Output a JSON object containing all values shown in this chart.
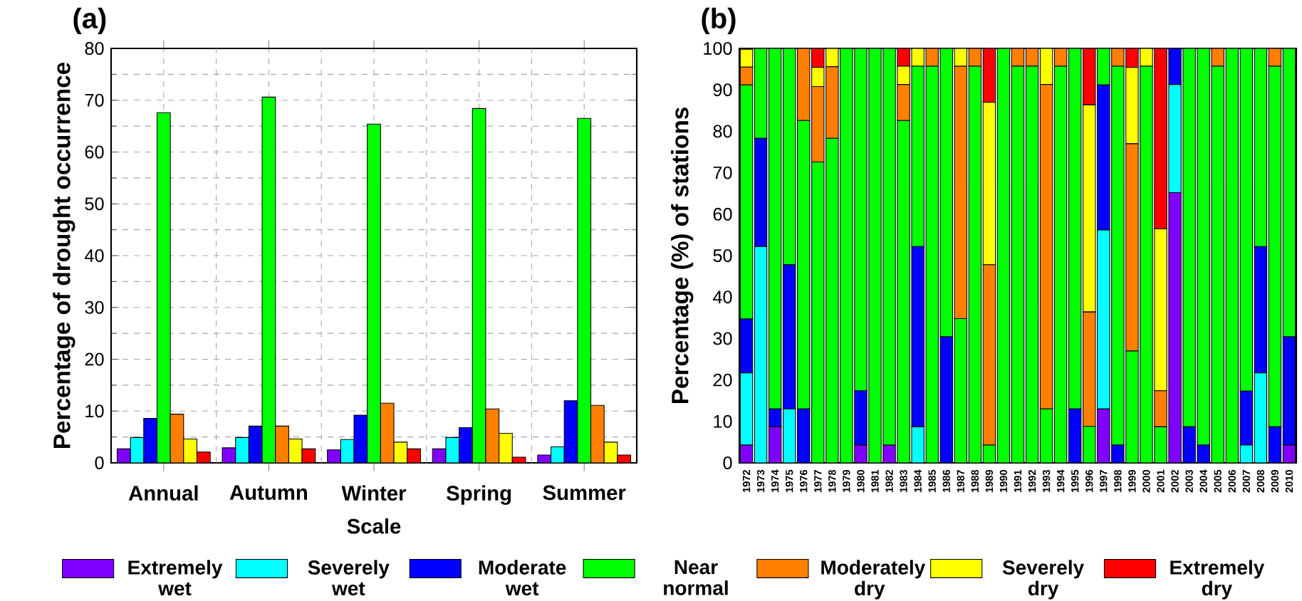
{
  "chart_data": [
    {
      "type": "bar",
      "title": "(a)",
      "xlabel": "Scale",
      "ylabel": "Percentage of drought occurrence",
      "categories": [
        "Annual",
        "Autumn",
        "Winter",
        "Spring",
        "Summer"
      ],
      "ylim": [
        0,
        80
      ],
      "yticks": [
        0,
        10,
        20,
        30,
        40,
        50,
        60,
        70,
        80
      ],
      "grid": true,
      "legend": "bottom",
      "series": [
        {
          "name": "Extremely wet",
          "color": "#8000ff",
          "values": [
            2.7,
            2.9,
            2.5,
            2.7,
            1.5
          ]
        },
        {
          "name": "Severely wet",
          "color": "#00ffff",
          "values": [
            4.9,
            4.9,
            4.5,
            4.9,
            3.1
          ]
        },
        {
          "name": "Moderate wet",
          "color": "#0000ff",
          "values": [
            8.6,
            7.1,
            9.2,
            6.8,
            12.0
          ]
        },
        {
          "name": "Near normal",
          "color": "#00ff00",
          "values": [
            67.6,
            70.6,
            65.4,
            68.4,
            66.5
          ]
        },
        {
          "name": "Moderately dry",
          "color": "#ff8000",
          "values": [
            9.4,
            7.1,
            11.5,
            10.4,
            11.1
          ]
        },
        {
          "name": "Severely dry",
          "color": "#ffff00",
          "values": [
            4.6,
            4.6,
            4.0,
            5.7,
            4.0
          ]
        },
        {
          "name": "Extremely dry",
          "color": "#ff0000",
          "values": [
            2.1,
            2.7,
            2.7,
            1.1,
            1.5
          ]
        }
      ]
    },
    {
      "type": "bar",
      "stacked": true,
      "title": "(b)",
      "ylabel": "Percentage (%) of stations",
      "categories": [
        "1972",
        "1973",
        "1974",
        "1975",
        "1976",
        "1977",
        "1978",
        "1979",
        "1980",
        "1981",
        "1982",
        "1983",
        "1984",
        "1985",
        "1986",
        "1987",
        "1988",
        "1989",
        "1990",
        "1991",
        "1992",
        "1993",
        "1994",
        "1995",
        "1996",
        "1997",
        "1998",
        "1999",
        "2000",
        "2001",
        "2002",
        "2003",
        "2004",
        "2005",
        "2006",
        "2007",
        "2008",
        "2009",
        "2010"
      ],
      "ylim": [
        0,
        100
      ],
      "yticks": [
        0,
        10,
        20,
        30,
        40,
        50,
        60,
        70,
        80,
        90,
        100
      ],
      "series": [
        {
          "color": "#8000ff",
          "values": [
            4.3,
            0,
            8.7,
            0,
            0,
            0,
            0,
            0,
            4.3,
            0,
            4.3,
            0,
            0,
            0,
            0,
            0,
            0,
            0,
            0,
            0,
            0,
            0,
            0,
            0,
            0,
            13.0,
            0,
            0,
            0,
            0,
            65.2,
            0,
            0,
            0,
            0,
            0,
            0,
            0,
            4.3
          ]
        },
        {
          "color": "#00ffff",
          "values": [
            17.4,
            52.2,
            0,
            13.0,
            0,
            0,
            0,
            0,
            0,
            0,
            0,
            0,
            8.7,
            0,
            0,
            0,
            0,
            0,
            0,
            0,
            0,
            0,
            0,
            0,
            0,
            43.2,
            0,
            0,
            0,
            0,
            26.1,
            0,
            0,
            0,
            0,
            4.3,
            21.7,
            0,
            0
          ]
        },
        {
          "color": "#0000ff",
          "values": [
            13.0,
            26.1,
            4.3,
            34.8,
            13.0,
            0,
            0,
            0,
            13.1,
            0,
            0,
            0,
            43.5,
            0,
            30.4,
            0,
            0,
            0,
            0,
            0,
            0,
            0,
            0,
            13.0,
            0,
            35.0,
            4.3,
            0,
            0,
            0,
            8.7,
            8.7,
            4.3,
            0,
            0,
            13.0,
            30.5,
            8.7,
            26.1
          ]
        },
        {
          "color": "#00ff00",
          "values": [
            56.5,
            21.7,
            87.0,
            52.2,
            69.6,
            72.6,
            78.3,
            100,
            82.6,
            100,
            95.7,
            82.6,
            43.5,
            95.7,
            69.6,
            34.8,
            95.7,
            4.3,
            100,
            95.7,
            95.7,
            13.0,
            95.7,
            87.0,
            8.8,
            8.8,
            91.4,
            27.0,
            95.7,
            8.7,
            0,
            91.3,
            95.7,
            95.7,
            100,
            82.7,
            47.8,
            87.0,
            69.6
          ]
        },
        {
          "color": "#ff8000",
          "values": [
            4.3,
            0,
            0,
            0,
            17.4,
            18.2,
            17.3,
            0,
            0,
            0,
            0,
            8.7,
            0,
            4.3,
            0,
            60.9,
            4.3,
            43.5,
            0,
            4.3,
            4.3,
            78.3,
            4.3,
            0,
            27.6,
            0,
            4.3,
            50.0,
            0,
            8.7,
            0,
            0,
            0,
            4.3,
            0,
            0,
            0,
            4.3,
            0
          ]
        },
        {
          "color": "#ffff00",
          "values": [
            4.3,
            0,
            0,
            0,
            0,
            4.6,
            4.4,
            0,
            0,
            0,
            0,
            4.4,
            4.3,
            0,
            0,
            4.3,
            0,
            39.2,
            0,
            0,
            0,
            8.7,
            0,
            0,
            50.0,
            0,
            0,
            18.4,
            4.3,
            39.1,
            0,
            0,
            0,
            0,
            0,
            0,
            0,
            0,
            0
          ]
        },
        {
          "color": "#ff0000",
          "values": [
            0,
            0,
            0,
            0,
            0,
            4.6,
            0,
            0,
            0,
            0,
            0,
            4.3,
            0,
            0,
            0,
            0,
            0,
            13.0,
            0,
            0,
            0,
            0,
            0,
            0,
            13.6,
            0,
            0,
            4.6,
            0,
            43.5,
            0,
            0,
            0,
            0,
            0,
            0,
            0,
            0,
            0
          ]
        }
      ]
    }
  ]
}
